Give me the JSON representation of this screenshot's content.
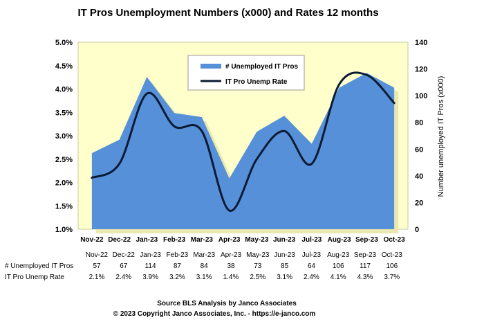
{
  "chart_data": {
    "type": "area+line",
    "title": "IT Pros Unemployment Numbers (x000) and Rates 12 months",
    "categories": [
      "Nov-22",
      "Dec-22",
      "Jan-23",
      "Feb-23",
      "Mar-23",
      "Apr-23",
      "May-23",
      "Jun-23",
      "Jul-23",
      "Aug-23",
      "Sep-23",
      "Oct-23"
    ],
    "left_axis": {
      "ylim": [
        1.0,
        5.0
      ],
      "ticks": [
        "1.0%",
        "1.5%",
        "2.0%",
        "2.5%",
        "3.0%",
        "3.5%",
        "4.0%",
        "4.5%",
        "5.0%"
      ]
    },
    "right_axis": {
      "label": "Number unemployed IT Pros (x000)",
      "ylim": [
        0,
        140
      ],
      "ticks": [
        "0",
        "20",
        "40",
        "60",
        "80",
        "100",
        "120",
        "140"
      ]
    },
    "series": [
      {
        "name": "# Unemployed IT Pros",
        "type": "area",
        "axis": "right",
        "color": "#5590d8",
        "values": [
          57,
          67,
          114,
          87,
          84,
          38,
          73,
          85,
          64,
          106,
          117,
          106
        ]
      },
      {
        "name": "IT Pro Unemp Rate",
        "type": "line",
        "axis": "left",
        "color": "#0a1a33",
        "values": [
          2.1,
          2.4,
          3.9,
          3.2,
          3.1,
          1.4,
          2.5,
          3.1,
          2.4,
          4.1,
          4.3,
          3.7
        ]
      }
    ],
    "legend": "inside-top-center",
    "plot_bg": "#ffffcc"
  },
  "table": {
    "columns": [
      "Nov-22",
      "Dec-22",
      "Jan-23",
      "Feb-23",
      "Mar-23",
      "Apr-23",
      "May-23",
      "Jun-23",
      "Jul-23",
      "Aug-23",
      "Sep-23",
      "Oct-23"
    ],
    "rows": [
      {
        "label": "# Unemployed IT Pros",
        "cells": [
          "57",
          "67",
          "114",
          "87",
          "84",
          "38",
          "73",
          "85",
          "64",
          "106",
          "117",
          "106"
        ]
      },
      {
        "label": "IT Pro Unemp Rate",
        "cells": [
          "2.1%",
          "2.4%",
          "3.9%",
          "3.2%",
          "3.1%",
          "1.4%",
          "2.5%",
          "3.1%",
          "2.4%",
          "4.1%",
          "4.3%",
          "3.7%"
        ]
      }
    ]
  },
  "footer": {
    "line1": "Source BLS Analysis by Janco Associates",
    "line2": "© 2023 Copyright Janco Associates, Inc. - https://e-janco.com"
  }
}
